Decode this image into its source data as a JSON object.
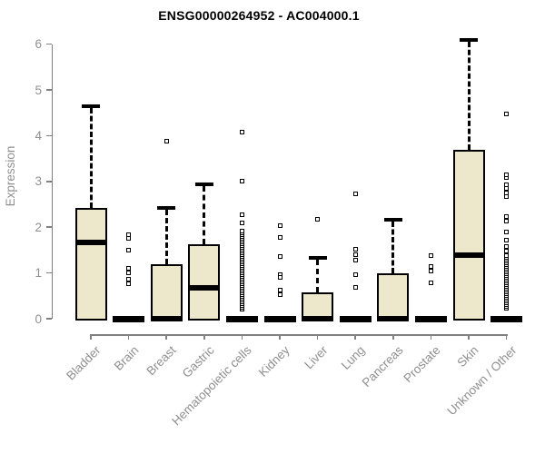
{
  "chart_data": {
    "type": "boxplot",
    "title": "ENSG00000264952 - AC004000.1",
    "ylabel": "Expression",
    "ylim": [
      0,
      6
    ],
    "yticks": [
      0,
      1,
      2,
      3,
      4,
      5,
      6
    ],
    "grid": false,
    "legend": false,
    "box_fill_color": "#EDE8CC",
    "box_line_color": "#000000",
    "axis_color": "#808080",
    "label_color": "#8f8f8f",
    "categories": [
      "Bladder",
      "Brain",
      "Breast",
      "Gastric",
      "Hematopoietic cells",
      "Kidney",
      "Liver",
      "Lung",
      "Pancreas",
      "Prostate",
      "Skin",
      "Unknown / Other"
    ],
    "series": [
      {
        "name": "Bladder",
        "q1": 0,
        "median": 1.67,
        "q3": 2.42,
        "whisker_low": 0,
        "whisker_high": 4.65,
        "outliers": []
      },
      {
        "name": "Brain",
        "q1": 0,
        "median": 0,
        "q3": 0,
        "whisker_low": 0,
        "whisker_high": 0,
        "outliers": [
          1.84,
          1.75,
          1.49,
          1.1,
          1.0,
          0.86,
          0.76
        ]
      },
      {
        "name": "Breast",
        "q1": 0,
        "median": 0,
        "q3": 1.2,
        "whisker_low": 0,
        "whisker_high": 2.43,
        "outliers": [
          3.87
        ]
      },
      {
        "name": "Gastric",
        "q1": 0,
        "median": 0.67,
        "q3": 1.63,
        "whisker_low": 0,
        "whisker_high": 2.93,
        "outliers": []
      },
      {
        "name": "Hematopoietic cells",
        "q1": 0,
        "median": 0,
        "q3": 0,
        "whisker_low": 0,
        "whisker_high": 0,
        "outliers": [
          0.2,
          0.24,
          0.28,
          0.32,
          0.36,
          0.4,
          0.44,
          0.48,
          0.52,
          0.56,
          0.6,
          0.64,
          0.68,
          0.72,
          0.76,
          0.8,
          0.84,
          0.88,
          0.92,
          0.96,
          1.0,
          1.04,
          1.08,
          1.12,
          1.16,
          1.2,
          1.24,
          1.28,
          1.32,
          1.36,
          1.4,
          1.44,
          1.48,
          1.52,
          1.56,
          1.6,
          1.64,
          1.68,
          1.72,
          1.76,
          1.8,
          1.84,
          1.88,
          1.92,
          2.1,
          2.28,
          3.0,
          4.07
        ]
      },
      {
        "name": "Kidney",
        "q1": 0,
        "median": 0,
        "q3": 0,
        "whisker_low": 0,
        "whisker_high": 0,
        "outliers": [
          2.04,
          1.77,
          1.35,
          0.97,
          0.91,
          0.62,
          0.52
        ]
      },
      {
        "name": "Liver",
        "q1": 0,
        "median": 0,
        "q3": 0.57,
        "whisker_low": 0,
        "whisker_high": 1.33,
        "outliers": [
          2.18
        ]
      },
      {
        "name": "Lung",
        "q1": 0,
        "median": 0,
        "q3": 0,
        "whisker_low": 0,
        "whisker_high": 0,
        "outliers": [
          2.72,
          1.51,
          1.39,
          1.27,
          0.97,
          0.69
        ]
      },
      {
        "name": "Pancreas",
        "q1": 0,
        "median": 0,
        "q3": 1.0,
        "whisker_low": 0,
        "whisker_high": 2.16,
        "outliers": []
      },
      {
        "name": "Prostate",
        "q1": 0,
        "median": 0,
        "q3": 0,
        "whisker_low": 0,
        "whisker_high": 0,
        "outliers": [
          1.37,
          1.15,
          1.05,
          0.79
        ]
      },
      {
        "name": "Skin",
        "q1": 0,
        "median": 1.39,
        "q3": 3.7,
        "whisker_low": 0,
        "whisker_high": 6.1,
        "outliers": []
      },
      {
        "name": "Unknown / Other",
        "q1": 0,
        "median": 0,
        "q3": 0,
        "whisker_low": 0,
        "whisker_high": 0,
        "outliers": [
          0.22,
          0.26,
          0.3,
          0.34,
          0.38,
          0.42,
          0.46,
          0.5,
          0.54,
          0.58,
          0.62,
          0.66,
          0.7,
          0.74,
          0.78,
          0.82,
          0.86,
          0.9,
          0.94,
          0.98,
          1.02,
          1.06,
          1.1,
          1.14,
          1.18,
          1.22,
          1.26,
          1.3,
          1.34,
          1.38,
          1.47,
          1.58,
          1.71,
          1.9,
          2.14,
          2.24,
          2.66,
          2.75,
          2.85,
          2.93,
          3.09,
          3.15,
          4.48
        ]
      }
    ]
  }
}
